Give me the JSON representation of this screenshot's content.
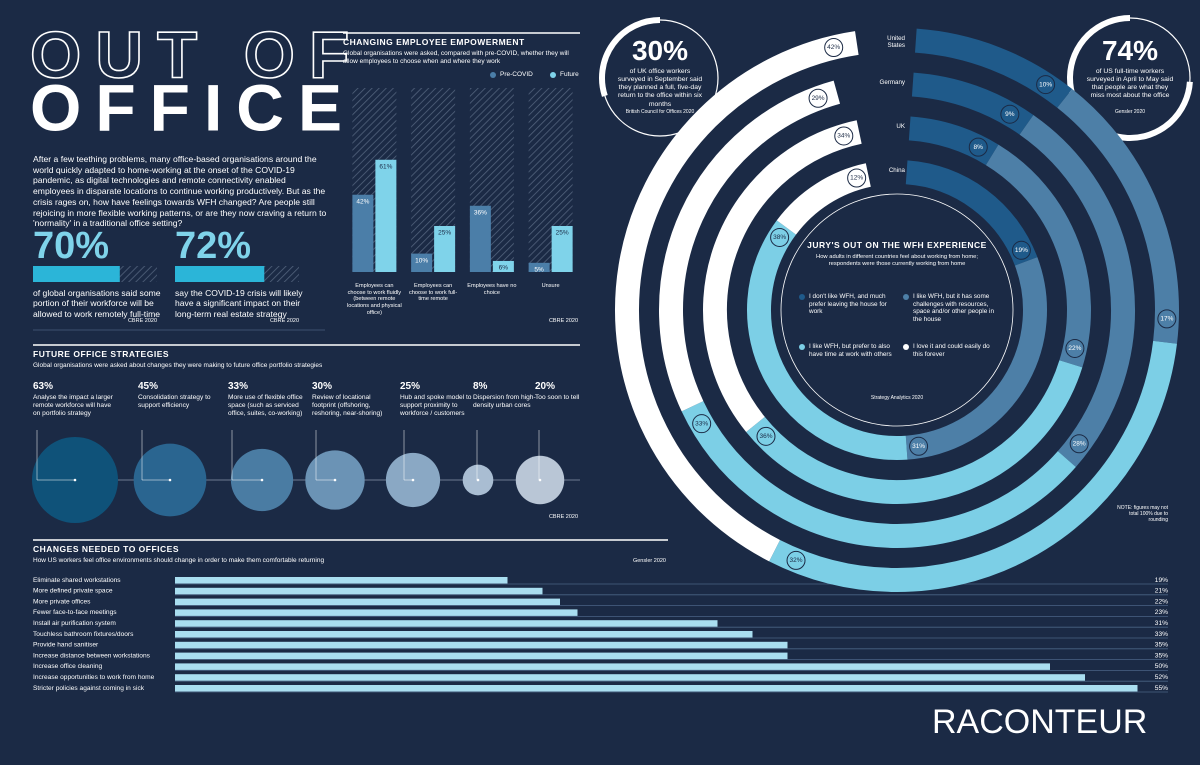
{
  "header": {
    "title_line1": "OUT OF",
    "title_line2": "OFFICE",
    "intro": "After a few teething problems, many office-based organisations around the world quickly adapted to home-working at the onset of the COVID-19 pandemic, as digital technologies and remote connectivity enabled employees in disparate locations to continue working productively. But as the crisis rages on, how have feelings towards WFH changed? Are people still rejoicing in more flexible working patterns, or are they now craving a return to 'normality' in a traditional office setting?"
  },
  "stats": [
    {
      "value": 70,
      "value_label": "70%",
      "text": "of global organisations said some portion of their workforce will be allowed to work remotely full-time",
      "source": "CBRE 2020"
    },
    {
      "value": 72,
      "value_label": "72%",
      "text": "say the COVID-19 crisis will likely have a significant impact on their long-term real estate strategy",
      "source": "CBRE 2020"
    }
  ],
  "callouts": [
    {
      "value": 30,
      "value_label": "30%",
      "text": "of UK office workers surveyed in September said they planned a full, five-day return to the office within six months",
      "source": "British Council for Offices 2020"
    },
    {
      "value": 74,
      "value_label": "74%",
      "text": "of US full-time workers surveyed in April to May said that people are what they miss most about the office",
      "source": "Gensler 2020"
    }
  ],
  "chart_data": [
    {
      "type": "bar",
      "title": "CHANGING EMPLOYEE EMPOWERMENT",
      "subtitle": "Global organisations were asked, compared with pre-COVID, whether they will allow employees to choose when and where they work",
      "categories": [
        "Employees can choose to work fluidly (between remote locations and physical office)",
        "Employees can choose to work full-time remote",
        "Employees have no choice",
        "Unsure"
      ],
      "series": [
        {
          "name": "Pre-COVID",
          "color": "#4b7ea8",
          "values": [
            42,
            10,
            36,
            5
          ],
          "value_labels": [
            "42%",
            "10%",
            "36%",
            "5%"
          ]
        },
        {
          "name": "Future",
          "color": "#7fd3ea",
          "values": [
            61,
            25,
            6,
            25
          ],
          "value_labels": [
            "61%",
            "25%",
            "6%",
            "25%"
          ]
        }
      ],
      "ylim": [
        0,
        100
      ],
      "source": "CBRE 2020"
    },
    {
      "type": "bubble",
      "title": "FUTURE OFFICE STRATEGIES",
      "subtitle": "Global organisations were asked about changes they were making to future office portfolio strategies",
      "categories": [
        "Analyse the impact a larger remote workforce will have on portfolio strategy",
        "Consolidation strategy to support efficiency",
        "More use of flexible office space (such as serviced office, suites, co-working)",
        "Review of locational footprint (offshoring, reshoring, near-shoring)",
        "Hub and spoke model to support proximity to workforce / customers",
        "Dispersion from high-density urban cores",
        "Too soon to tell"
      ],
      "values": [
        63,
        45,
        33,
        30,
        25,
        8,
        20
      ],
      "value_labels": [
        "63%",
        "45%",
        "33%",
        "30%",
        "25%",
        "8%",
        "20%"
      ],
      "colors": [
        "#0f5279",
        "#2a6590",
        "#4a7ca3",
        "#6b93b5",
        "#8aa8c4",
        "#a9bdd2",
        "#b9c6d6"
      ],
      "source": "CBRE 2020"
    },
    {
      "type": "hbar",
      "title": "CHANGES NEEDED TO OFFICES",
      "subtitle": "How US workers feel office environments should change in order to make them comfortable returning",
      "categories": [
        "Eliminate shared workstations",
        "More defined private space",
        "More private offices",
        "Fewer face-to-face meetings",
        "Install air purification system",
        "Touchless bathroom fixtures/doors",
        "Provide hand sanitiser",
        "Increase distance between workstations",
        "Increase office cleaning",
        "Increase opportunities to work from home",
        "Stricter policies against coming in sick"
      ],
      "values": [
        19,
        21,
        22,
        23,
        31,
        33,
        35,
        35,
        50,
        52,
        55
      ],
      "value_labels": [
        "19%",
        "21%",
        "22%",
        "23%",
        "31%",
        "33%",
        "35%",
        "35%",
        "50%",
        "52%",
        "55%"
      ],
      "color": "#a9def0",
      "source": "Gensler 2020"
    },
    {
      "type": "rings",
      "title": "JURY'S OUT ON THE WFH EXPERIENCE",
      "subtitle": "How adults in different countries feel about working from home; respondents were those currently working from home",
      "categories": [
        "I don't like WFH, and much prefer leaving the house for work",
        "I like WFH, but it has some challenges with resources, space and/or other people in the house",
        "I like WFH, but prefer to also have time at work with others",
        "I love it and could easily do this forever"
      ],
      "colors": [
        "#1f5a8a",
        "#4d7fa7",
        "#7ccfe6",
        "#ffffff"
      ],
      "series": [
        {
          "name": "United States",
          "values": [
            10,
            17,
            32,
            42
          ],
          "value_labels": [
            "10%",
            "17%",
            "32%",
            "42%"
          ]
        },
        {
          "name": "Germany",
          "values": [
            9,
            28,
            33,
            29
          ],
          "value_labels": [
            "9%",
            "28%",
            "33%",
            "29%"
          ]
        },
        {
          "name": "UK",
          "values": [
            8,
            22,
            36,
            34
          ],
          "value_labels": [
            "8%",
            "22%",
            "36%",
            "34%"
          ]
        },
        {
          "name": "China",
          "values": [
            19,
            31,
            38,
            12
          ],
          "value_labels": [
            "19%",
            "31%",
            "38%",
            "12%"
          ]
        }
      ],
      "source": "Strategy Analytics 2020",
      "note": "NOTE: figures may not total 100% due to rounding"
    }
  ],
  "logo": "RACONTEUR"
}
